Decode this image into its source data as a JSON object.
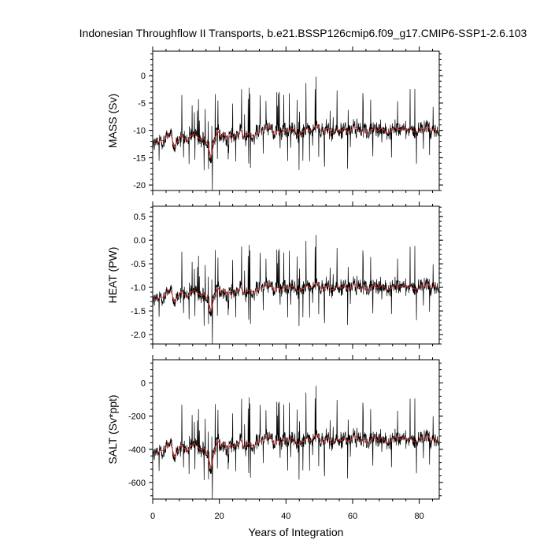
{
  "title": "Indonesian Throughflow II Transports, b.e21.BSSP126cmip6.f09_g17.CMIP6-SSP1-2.6.103",
  "colors": {
    "raw": "#000000",
    "smoothed": "#e03030"
  },
  "chart_data": [
    {
      "type": "line",
      "ylabel": "MASS (Sv)",
      "xlim": [
        0,
        86
      ],
      "ylim": [
        -21,
        4.5
      ],
      "yticks": [
        0,
        -5,
        -10,
        -15,
        -20
      ],
      "ytick_labels": [
        "0",
        "-5",
        "-10",
        "-15",
        "-20"
      ],
      "xticks": [
        0,
        20,
        40,
        60,
        80
      ],
      "series": [
        {
          "smoothed": [
            -12.5,
            -12.2,
            -11.8,
            -12.0,
            -10.5,
            -10.8,
            -13.0,
            -12.0,
            -11.0,
            -11.5,
            -12.0,
            -11.0,
            -10.6,
            -11.2,
            -11.8,
            -11.5,
            -12.5,
            -15.0,
            -12.0,
            -10.0,
            -11.2,
            -10.5,
            -11.6,
            -10.8,
            -11.3,
            -10.6,
            -10.0,
            -11.5,
            -10.5,
            -10.8,
            -11.2,
            -10.3,
            -10.1,
            -9.9,
            -9.2,
            -9.5,
            -10.8,
            -10.0,
            -10.6,
            -9.8,
            -10.3,
            -9.7,
            -9.8,
            -10.9,
            -10.5,
            -10.1,
            -9.6,
            -10.2,
            -9.4,
            -9.0,
            -10.1,
            -10.4,
            -9.5,
            -10.5,
            -10.3,
            -9.9,
            -10.2,
            -9.6,
            -10.4,
            -10.0,
            -9.3,
            -9.7,
            -10.4,
            -9.9,
            -10.6,
            -10.0,
            -9.4,
            -10.2,
            -9.6,
            -9.9,
            -10.6,
            -10.3,
            -9.4,
            -9.8,
            -9.9,
            -9.4,
            -10.1,
            -9.8,
            -10.3,
            -10.4,
            -9.6,
            -9.9,
            -9.1,
            -10.2,
            -9.7,
            -10.3
          ]
        }
      ]
    },
    {
      "type": "line",
      "ylabel": "HEAT (PW)",
      "xlim": [
        0,
        86
      ],
      "ylim": [
        -2.2,
        0.72
      ],
      "yticks": [
        0.5,
        0.0,
        -0.5,
        -1.0,
        -1.5,
        -2.0
      ],
      "ytick_labels": [
        "0.5",
        "0.0",
        "-0.5",
        "-1.0",
        "-1.5",
        "-2.0"
      ],
      "xticks": [
        0,
        20,
        40,
        60,
        80
      ],
      "series": [
        {
          "smoothed": [
            -1.27,
            -1.24,
            -1.2,
            -1.22,
            -1.05,
            -1.08,
            -1.3,
            -1.2,
            -1.1,
            -1.15,
            -1.2,
            -1.1,
            -1.06,
            -1.12,
            -1.18,
            -1.15,
            -1.25,
            -1.5,
            -1.2,
            -1.0,
            -1.12,
            -1.05,
            -1.16,
            -1.08,
            -1.13,
            -1.06,
            -1.0,
            -1.15,
            -1.05,
            -1.08,
            -1.12,
            -1.03,
            -1.01,
            -0.99,
            -0.92,
            -0.95,
            -1.08,
            -1.0,
            -1.06,
            -0.98,
            -1.03,
            -0.97,
            -0.98,
            -1.09,
            -1.05,
            -1.01,
            -0.96,
            -1.02,
            -0.94,
            -0.9,
            -1.01,
            -1.04,
            -0.95,
            -1.05,
            -1.03,
            -0.99,
            -1.02,
            -0.96,
            -1.04,
            -1.0,
            -0.93,
            -0.97,
            -1.04,
            -0.99,
            -1.06,
            -1.0,
            -0.94,
            -1.02,
            -0.96,
            -0.99,
            -1.06,
            -1.03,
            -0.94,
            -0.98,
            -0.99,
            -0.94,
            -1.01,
            -0.98,
            -1.03,
            -1.04,
            -0.96,
            -0.99,
            -0.91,
            -1.02,
            -0.97,
            -1.03
          ]
        }
      ]
    },
    {
      "type": "line",
      "ylabel": "SALT (Sv*ppt)",
      "xlim": [
        0,
        86
      ],
      "ylim": [
        -700,
        140
      ],
      "yticks": [
        0,
        -200,
        -400,
        -600
      ],
      "ytick_labels": [
        "0",
        "-200",
        "-400",
        "-600"
      ],
      "xticks": [
        0,
        20,
        40,
        60,
        80
      ],
      "xtick_labels": [
        "0",
        "20",
        "40",
        "60",
        "80"
      ],
      "xlabel": "Years of Integration",
      "series": [
        {
          "smoothed": [
            -430,
            -420,
            -405,
            -412,
            -360,
            -370,
            -445,
            -412,
            -378,
            -395,
            -412,
            -378,
            -364,
            -385,
            -405,
            -395,
            -430,
            -515,
            -412,
            -344,
            -385,
            -360,
            -398,
            -371,
            -388,
            -364,
            -344,
            -395,
            -360,
            -371,
            -385,
            -354,
            -347,
            -340,
            -316,
            -326,
            -371,
            -344,
            -364,
            -337,
            -354,
            -333,
            -337,
            -374,
            -360,
            -347,
            -330,
            -350,
            -323,
            -309,
            -347,
            -357,
            -326,
            -360,
            -354,
            -340,
            -350,
            -330,
            -357,
            -344,
            -319,
            -333,
            -357,
            -340,
            -364,
            -344,
            -323,
            -350,
            -330,
            -340,
            -364,
            -354,
            -323,
            -337,
            -340,
            -323,
            -347,
            -337,
            -354,
            -357,
            -330,
            -340,
            -313,
            -350,
            -333,
            -354
          ]
        }
      ]
    }
  ]
}
